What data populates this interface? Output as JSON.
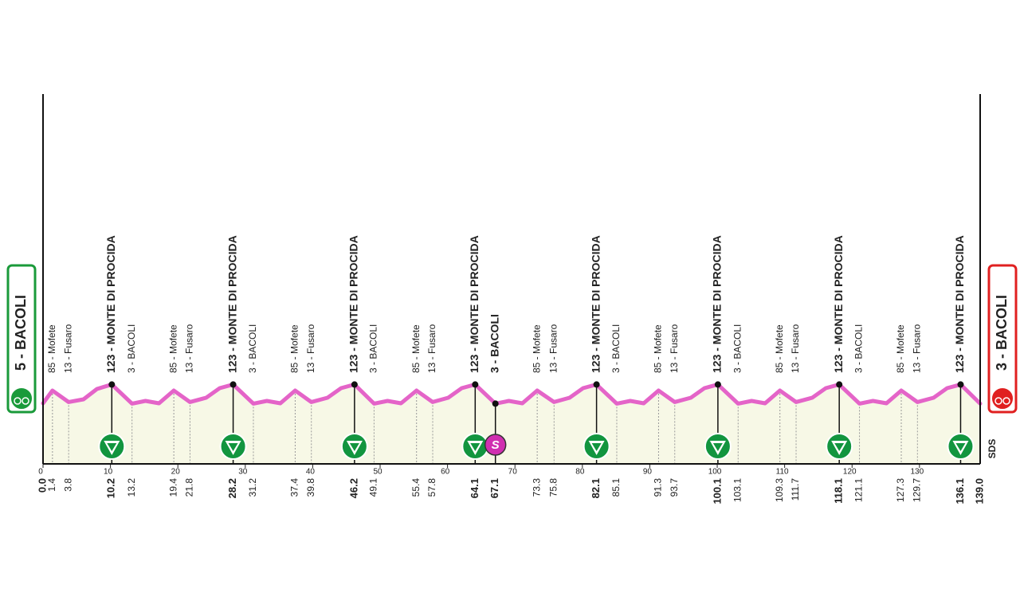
{
  "chart_data": {
    "type": "profile",
    "xlim": [
      0,
      139
    ],
    "xticks": [
      0,
      10,
      20,
      30,
      40,
      50,
      60,
      70,
      80,
      90,
      100,
      110,
      120,
      130
    ],
    "line_color": "#e464c8",
    "fill_color": "#f7f8e6",
    "profile": {
      "km": [
        0,
        1.4,
        3.8,
        6,
        8,
        10.2,
        13.2,
        15.2,
        17.2,
        19.4,
        21.8,
        24.2,
        26.2,
        28.2,
        31.2,
        33.2,
        35.2,
        37.4,
        39.8,
        42.2,
        44.2,
        46.2,
        49.1,
        51.1,
        53.1,
        55.4,
        57.8,
        60.1,
        62.1,
        64.1,
        67.1,
        69.1,
        71.1,
        73.3,
        75.8,
        78.1,
        80.1,
        82.1,
        85.1,
        87.1,
        89.1,
        91.3,
        93.7,
        96.1,
        98.1,
        100.1,
        103.1,
        105.1,
        107.1,
        109.3,
        111.7,
        114.1,
        116.1,
        118.1,
        121.1,
        123.1,
        125.1,
        127.3,
        129.7,
        132.1,
        134.1,
        136.1,
        139
      ],
      "elevation": [
        5,
        85,
        13,
        30,
        95,
        123,
        3,
        20,
        5,
        85,
        13,
        40,
        100,
        123,
        3,
        20,
        5,
        85,
        13,
        40,
        100,
        123,
        3,
        20,
        5,
        85,
        13,
        40,
        100,
        123,
        3,
        20,
        5,
        85,
        13,
        40,
        100,
        123,
        3,
        20,
        5,
        85,
        13,
        40,
        100,
        123,
        3,
        20,
        5,
        85,
        13,
        40,
        100,
        123,
        3,
        20,
        5,
        85,
        13,
        40,
        100,
        123,
        3
      ]
    },
    "sprint_symbol": "S",
    "logo": "SDS",
    "waypoints": [
      {
        "km": {
          "value": 0,
          "label": "0.0"
        },
        "label": "5 - BACOLI",
        "kind": "start"
      },
      {
        "km": 1.4,
        "label": "85 - Mofete",
        "kind": "minor"
      },
      {
        "km": 3.8,
        "label": "13 - Fusaro",
        "kind": "minor"
      },
      {
        "km": 10.2,
        "label": "123 - MONTE DI PROCIDA",
        "kind": "climb"
      },
      {
        "km": 13.2,
        "label": "3 - BACOLI",
        "kind": "minor"
      },
      {
        "km": 19.4,
        "label": "85 - Mofete",
        "kind": "minor"
      },
      {
        "km": 21.8,
        "label": "13 - Fusaro",
        "kind": "minor"
      },
      {
        "km": 28.2,
        "label": "123 - MONTE DI PROCIDA",
        "kind": "climb"
      },
      {
        "km": 31.2,
        "label": "3 - BACOLI",
        "kind": "minor"
      },
      {
        "km": 37.4,
        "label": "85 - Mofete",
        "kind": "minor"
      },
      {
        "km": 39.8,
        "label": "13 - Fusaro",
        "kind": "minor"
      },
      {
        "km": 46.2,
        "label": "123 - MONTE DI PROCIDA",
        "kind": "climb"
      },
      {
        "km": 49.1,
        "label": "3 - BACOLI",
        "kind": "minor"
      },
      {
        "km": 55.4,
        "label": "85 - Mofete",
        "kind": "minor"
      },
      {
        "km": 57.8,
        "label": "13 - Fusaro",
        "kind": "minor"
      },
      {
        "km": 64.1,
        "label": "123 - MONTE DI PROCIDA",
        "kind": "climb"
      },
      {
        "km": 67.1,
        "label": "3 - BACOLI",
        "kind": "sprint"
      },
      {
        "km": 73.3,
        "label": "85 - Mofete",
        "kind": "minor"
      },
      {
        "km": 75.8,
        "label": "13 - Fusaro",
        "kind": "minor"
      },
      {
        "km": 82.1,
        "label": "123 - MONTE DI PROCIDA",
        "kind": "climb"
      },
      {
        "km": 85.1,
        "label": "3 - BACOLI",
        "kind": "minor"
      },
      {
        "km": 91.3,
        "label": "85 - Mofete",
        "kind": "minor"
      },
      {
        "km": 93.7,
        "label": "13 - Fusaro",
        "kind": "minor"
      },
      {
        "km": 100.1,
        "label": "123 - MONTE DI PROCIDA",
        "kind": "climb"
      },
      {
        "km": 103.1,
        "label": "3 - BACOLI",
        "kind": "minor"
      },
      {
        "km": 109.3,
        "label": "85 - Mofete",
        "kind": "minor"
      },
      {
        "km": 111.7,
        "label": "13 - Fusaro",
        "kind": "minor"
      },
      {
        "km": 118.1,
        "label": "123 - MONTE DI PROCIDA",
        "kind": "climb"
      },
      {
        "km": 121.1,
        "label": "3 - BACOLI",
        "kind": "minor"
      },
      {
        "km": 127.3,
        "label": "85 - Mofete",
        "kind": "minor"
      },
      {
        "km": 129.7,
        "label": "13 - Fusaro",
        "kind": "minor"
      },
      {
        "km": 136.1,
        "label": "123 - MONTE DI PROCIDA",
        "kind": "climb"
      },
      {
        "km": {
          "value": 139,
          "label": "139.0"
        },
        "label": "3 - BACOLI",
        "kind": "finish"
      }
    ]
  }
}
